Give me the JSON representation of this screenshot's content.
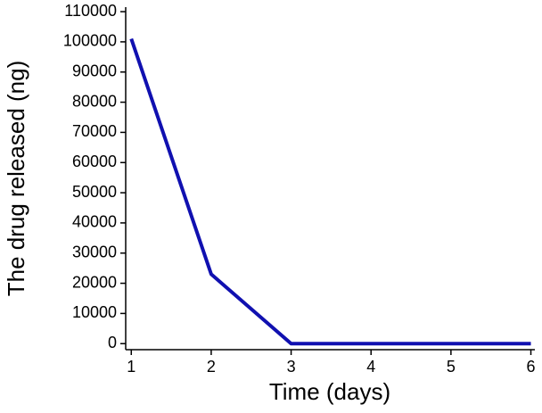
{
  "chart_data": {
    "type": "line",
    "x_label": "Time (days)",
    "y_label": "The drug released (ng)",
    "x": [
      1,
      2,
      3,
      4,
      5,
      6
    ],
    "series": [
      {
        "name": "drug released",
        "color": "#1010b0",
        "values": [
          101000,
          23000,
          0,
          0,
          0,
          0
        ]
      }
    ],
    "xlim": [
      0.93,
      6.05
    ],
    "xticks": [
      1,
      2,
      3,
      4,
      5,
      6
    ],
    "ylim": [
      -2000,
      111500
    ],
    "yticks": [
      0,
      10000,
      20000,
      30000,
      40000,
      50000,
      60000,
      70000,
      80000,
      90000,
      100000,
      110000
    ],
    "grid": false,
    "legend": false
  }
}
